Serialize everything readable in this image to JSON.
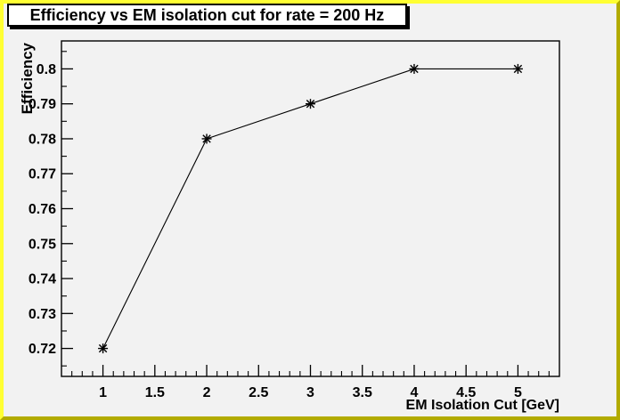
{
  "window": {
    "bg_color": "#f2f2f2",
    "border_light_color": "#ffff33",
    "border_dark_color": "#b2ab00"
  },
  "title_box": {
    "text": "Efficiency vs EM isolation cut for rate = 200 Hz",
    "bg_color": "#ffffff",
    "border_color": "#000000"
  },
  "chart_data": {
    "type": "line",
    "title": "Efficiency vs EM isolation cut for rate = 200 Hz",
    "xlabel": "EM Isolation Cut [GeV]",
    "ylabel": "Efficiency",
    "x": [
      1,
      2,
      3,
      4,
      5
    ],
    "y": [
      0.72,
      0.78,
      0.79,
      0.8,
      0.8
    ],
    "xlim": [
      0.6,
      5.4
    ],
    "ylim": [
      0.712,
      0.808
    ],
    "x_major_ticks": [
      1,
      1.5,
      2,
      2.5,
      3,
      3.5,
      4,
      4.5,
      5
    ],
    "x_tick_labels": [
      "1",
      "1.5",
      "2",
      "2.5",
      "3",
      "3.5",
      "4",
      "4.5",
      "5"
    ],
    "x_minor_step": 0.1,
    "y_major_ticks": [
      0.72,
      0.73,
      0.74,
      0.75,
      0.76,
      0.77,
      0.78,
      0.79,
      0.8
    ],
    "y_tick_labels": [
      "0.72",
      "0.73",
      "0.74",
      "0.75",
      "0.76",
      "0.77",
      "0.78",
      "0.79",
      "0.8"
    ],
    "y_minor_step": 0.005,
    "marker": "star",
    "marker_color": "#000000",
    "line_color": "#000000",
    "axis_color": "#000000",
    "grid": false,
    "legend": null
  }
}
